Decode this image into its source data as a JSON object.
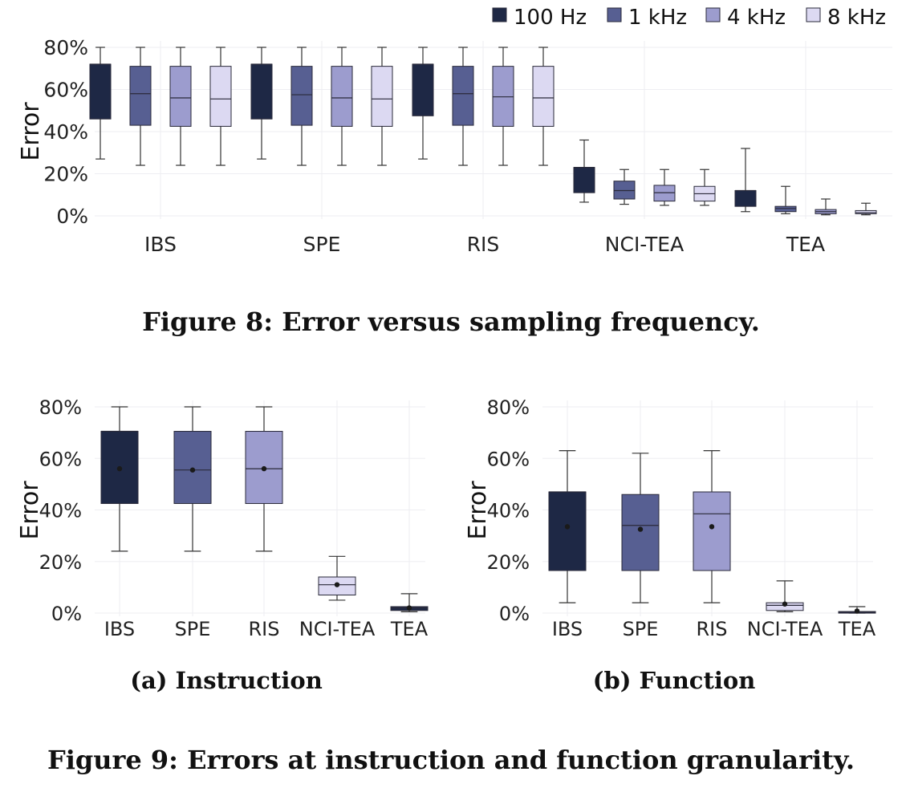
{
  "colors": {
    "100 Hz": "#1e2845",
    "1 kHz": "#575f92",
    "4 kHz": "#9c9cce",
    "8 kHz": "#dcd9f2"
  },
  "captions": {
    "figure8": "Figure 8: Error versus sampling frequency.",
    "figure9": "Figure 9: Errors at instruction and function granularity.",
    "sub_a": "(a) Instruction",
    "sub_b": "(b) Function"
  },
  "chart_data": [
    {
      "type": "box",
      "ylabel": "Error",
      "ylim": [
        0,
        80
      ],
      "yticks": [
        "0%",
        "20%",
        "40%",
        "60%",
        "80%"
      ],
      "categories": [
        "IBS",
        "SPE",
        "RIS",
        "NCI-TEA",
        "TEA"
      ],
      "legend": {
        "position": "top-right",
        "entries": [
          "100 Hz",
          "1 kHz",
          "4 kHz",
          "8 kHz"
        ]
      },
      "series": [
        {
          "name": "100 Hz",
          "boxes": [
            {
              "min": 27,
              "q1": 46,
              "median": 72,
              "q3": 72,
              "max": 80
            },
            {
              "min": 27,
              "q1": 46,
              "median": 72,
              "q3": 72,
              "max": 80
            },
            {
              "min": 27,
              "q1": 47.5,
              "median": 72,
              "q3": 72,
              "max": 80
            },
            {
              "min": 6.5,
              "q1": 11,
              "median": 23,
              "q3": 23,
              "max": 36
            },
            {
              "min": 2,
              "q1": 4.5,
              "median": 12,
              "q3": 12,
              "max": 32
            }
          ]
        },
        {
          "name": "1 kHz",
          "boxes": [
            {
              "min": 24,
              "q1": 43,
              "median": 58,
              "q3": 71,
              "max": 80
            },
            {
              "min": 24,
              "q1": 43,
              "median": 57.5,
              "q3": 71,
              "max": 80
            },
            {
              "min": 24,
              "q1": 43,
              "median": 58,
              "q3": 71,
              "max": 80
            },
            {
              "min": 5.5,
              "q1": 8,
              "median": 12,
              "q3": 16.5,
              "max": 22
            },
            {
              "min": 1,
              "q1": 2,
              "median": 3.5,
              "q3": 4.5,
              "max": 14
            }
          ]
        },
        {
          "name": "4 kHz",
          "boxes": [
            {
              "min": 24,
              "q1": 42.5,
              "median": 56,
              "q3": 71,
              "max": 80
            },
            {
              "min": 24,
              "q1": 42.5,
              "median": 56,
              "q3": 71,
              "max": 80
            },
            {
              "min": 24,
              "q1": 42.5,
              "median": 56.5,
              "q3": 71,
              "max": 80
            },
            {
              "min": 5,
              "q1": 7,
              "median": 11,
              "q3": 14.5,
              "max": 22
            },
            {
              "min": 0.5,
              "q1": 1,
              "median": 2,
              "q3": 3,
              "max": 8
            }
          ]
        },
        {
          "name": "8 kHz",
          "boxes": [
            {
              "min": 24,
              "q1": 42.5,
              "median": 55.5,
              "q3": 71,
              "max": 80
            },
            {
              "min": 24,
              "q1": 42.5,
              "median": 55.5,
              "q3": 71,
              "max": 80
            },
            {
              "min": 24,
              "q1": 42.5,
              "median": 56,
              "q3": 71,
              "max": 80
            },
            {
              "min": 5,
              "q1": 7,
              "median": 10.5,
              "q3": 14,
              "max": 22
            },
            {
              "min": 0.5,
              "q1": 1,
              "median": 1.5,
              "q3": 2.5,
              "max": 6
            }
          ]
        }
      ]
    },
    {
      "type": "box",
      "ylabel": "Error",
      "ylim": [
        0,
        80
      ],
      "yticks": [
        "0%",
        "20%",
        "40%",
        "60%",
        "80%"
      ],
      "categories": [
        "IBS",
        "SPE",
        "RIS",
        "NCI-TEA",
        "TEA"
      ],
      "boxes": [
        {
          "min": 24,
          "q1": 42.5,
          "median": 70.5,
          "q3": 70.5,
          "max": 80,
          "mean": 56
        },
        {
          "min": 24,
          "q1": 42.5,
          "median": 55.5,
          "q3": 70.5,
          "max": 80,
          "mean": 55.5
        },
        {
          "min": 24,
          "q1": 42.5,
          "median": 56,
          "q3": 70.5,
          "max": 80,
          "mean": 56
        },
        {
          "min": 5,
          "q1": 7,
          "median": 11,
          "q3": 14,
          "max": 22,
          "mean": 11
        },
        {
          "min": 0.5,
          "q1": 1,
          "median": 2,
          "q3": 2.5,
          "max": 7.5,
          "mean": 2
        }
      ]
    },
    {
      "type": "box",
      "ylabel": "Error",
      "ylim": [
        0,
        80
      ],
      "yticks": [
        "0%",
        "20%",
        "40%",
        "60%",
        "80%"
      ],
      "categories": [
        "IBS",
        "SPE",
        "RIS",
        "NCI-TEA",
        "TEA"
      ],
      "boxes": [
        {
          "min": 4,
          "q1": 16.5,
          "median": 47,
          "q3": 47,
          "max": 63,
          "mean": 33.5
        },
        {
          "min": 4,
          "q1": 16.5,
          "median": 34,
          "q3": 46,
          "max": 62,
          "mean": 32.5
        },
        {
          "min": 4,
          "q1": 16.5,
          "median": 38.5,
          "q3": 47,
          "max": 63,
          "mean": 33.5
        },
        {
          "min": 0.5,
          "q1": 1,
          "median": 3,
          "q3": 4,
          "max": 12.5,
          "mean": 3.5
        },
        {
          "min": 0,
          "q1": 0.2,
          "median": 0.4,
          "q3": 0.6,
          "max": 2.5,
          "mean": 0.8
        }
      ]
    }
  ]
}
